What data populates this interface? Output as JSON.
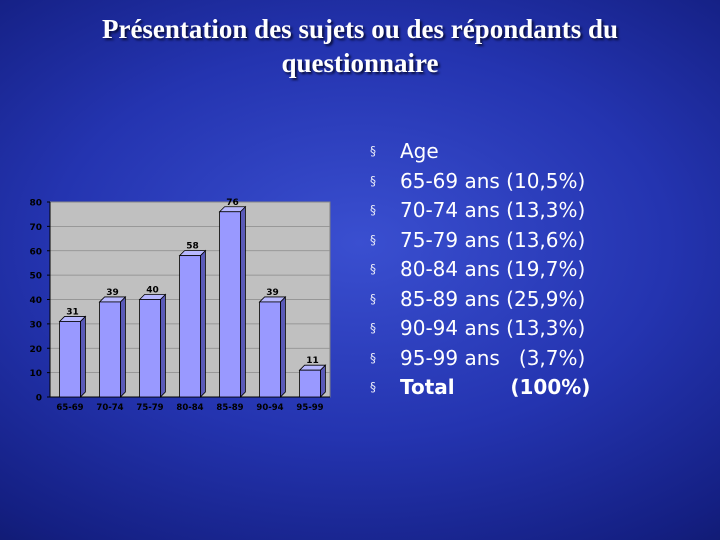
{
  "title": {
    "line1": "Présentation des sujets ou des répondants du",
    "line2": "questionnaire"
  },
  "chart_data": {
    "type": "bar",
    "categories": [
      "65-69",
      "70-74",
      "75-79",
      "80-84",
      "85-89",
      "90-94",
      "95-99"
    ],
    "values": [
      31,
      39,
      40,
      58,
      76,
      39,
      11
    ],
    "data_labels": [
      "31",
      "39",
      "40",
      "58",
      "76",
      "39",
      "11"
    ],
    "ylim": [
      0,
      80
    ],
    "yticks": [
      0,
      10,
      20,
      30,
      40,
      50,
      60,
      70,
      80
    ],
    "grid": true,
    "legend": "none",
    "bar_color": "#9999ff",
    "plot_background": "#c0c0c0",
    "title": "",
    "xlabel": "",
    "ylabel": ""
  },
  "bullets": [
    {
      "text": "Age",
      "bold": false
    },
    {
      "text": "65-69 ans (10,5%)",
      "bold": false
    },
    {
      "text": "70-74 ans (13,3%)",
      "bold": false
    },
    {
      "text": "75-79 ans (13,6%)",
      "bold": false
    },
    {
      "text": "80-84 ans (19,7%)",
      "bold": false
    },
    {
      "text": "85-89 ans (25,9%)",
      "bold": false
    },
    {
      "text": "90-94 ans (13,3%)",
      "bold": false
    },
    {
      "text": "95-99 ans   (3,7%)",
      "bold": false
    },
    {
      "text": "Total        (100%)",
      "bold": true
    }
  ],
  "bullet_marker": "§",
  "colors": {
    "background": "#2434b0",
    "text": "#ffffff"
  }
}
